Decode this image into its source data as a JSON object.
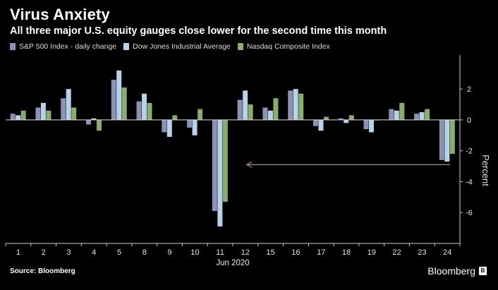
{
  "header": {
    "title": "Virus Anxiety",
    "subtitle": "All three major U.S. equity gauges close lower for the second time this month"
  },
  "footer": {
    "source": "Source: Bloomberg",
    "brand": "Bloomberg"
  },
  "colors": {
    "sp500": "#8d91b3",
    "dow": "#b7d2ea",
    "nasdaq": "#88ad6e",
    "arrow": "#a98c86"
  },
  "chart_data": {
    "type": "bar",
    "categories": [
      "1",
      "2",
      "3",
      "4",
      "5",
      "8",
      "9",
      "10",
      "11",
      "12",
      "15",
      "16",
      "17",
      "18",
      "19",
      "22",
      "23",
      "24"
    ],
    "xlabel": "Jun 2020",
    "ylabel": "Percent",
    "ylim": [
      -8.0,
      4.2
    ],
    "yticks": [
      2,
      0,
      -2,
      -4,
      -6
    ],
    "series": [
      {
        "name": "S&P 500 Index - daily change",
        "color_key": "sp500",
        "values": [
          0.4,
          0.8,
          1.4,
          -0.3,
          2.6,
          1.2,
          -0.8,
          -0.5,
          -5.9,
          1.3,
          0.8,
          1.9,
          -0.4,
          0.1,
          -0.6,
          0.7,
          0.4,
          -2.6
        ]
      },
      {
        "name": "Dow Jones Industrial Average",
        "color_key": "dow",
        "values": [
          0.3,
          1.1,
          2.0,
          0.1,
          3.2,
          1.7,
          -1.1,
          -1.0,
          -6.9,
          1.9,
          0.6,
          2.0,
          -0.7,
          -0.2,
          -0.8,
          0.6,
          0.5,
          -2.7
        ]
      },
      {
        "name": "Nasdaq Composite Index",
        "color_key": "nasdaq",
        "values": [
          0.6,
          0.6,
          0.8,
          -0.7,
          2.1,
          1.1,
          0.3,
          0.7,
          -5.3,
          1.0,
          1.4,
          1.7,
          0.2,
          0.3,
          0.0,
          1.1,
          0.7,
          -2.2
        ]
      }
    ],
    "annotation": {
      "type": "arrow",
      "from_category": "24",
      "to_category": "12",
      "y": -2.9
    },
    "grid": false,
    "legend_position": "top-left"
  }
}
